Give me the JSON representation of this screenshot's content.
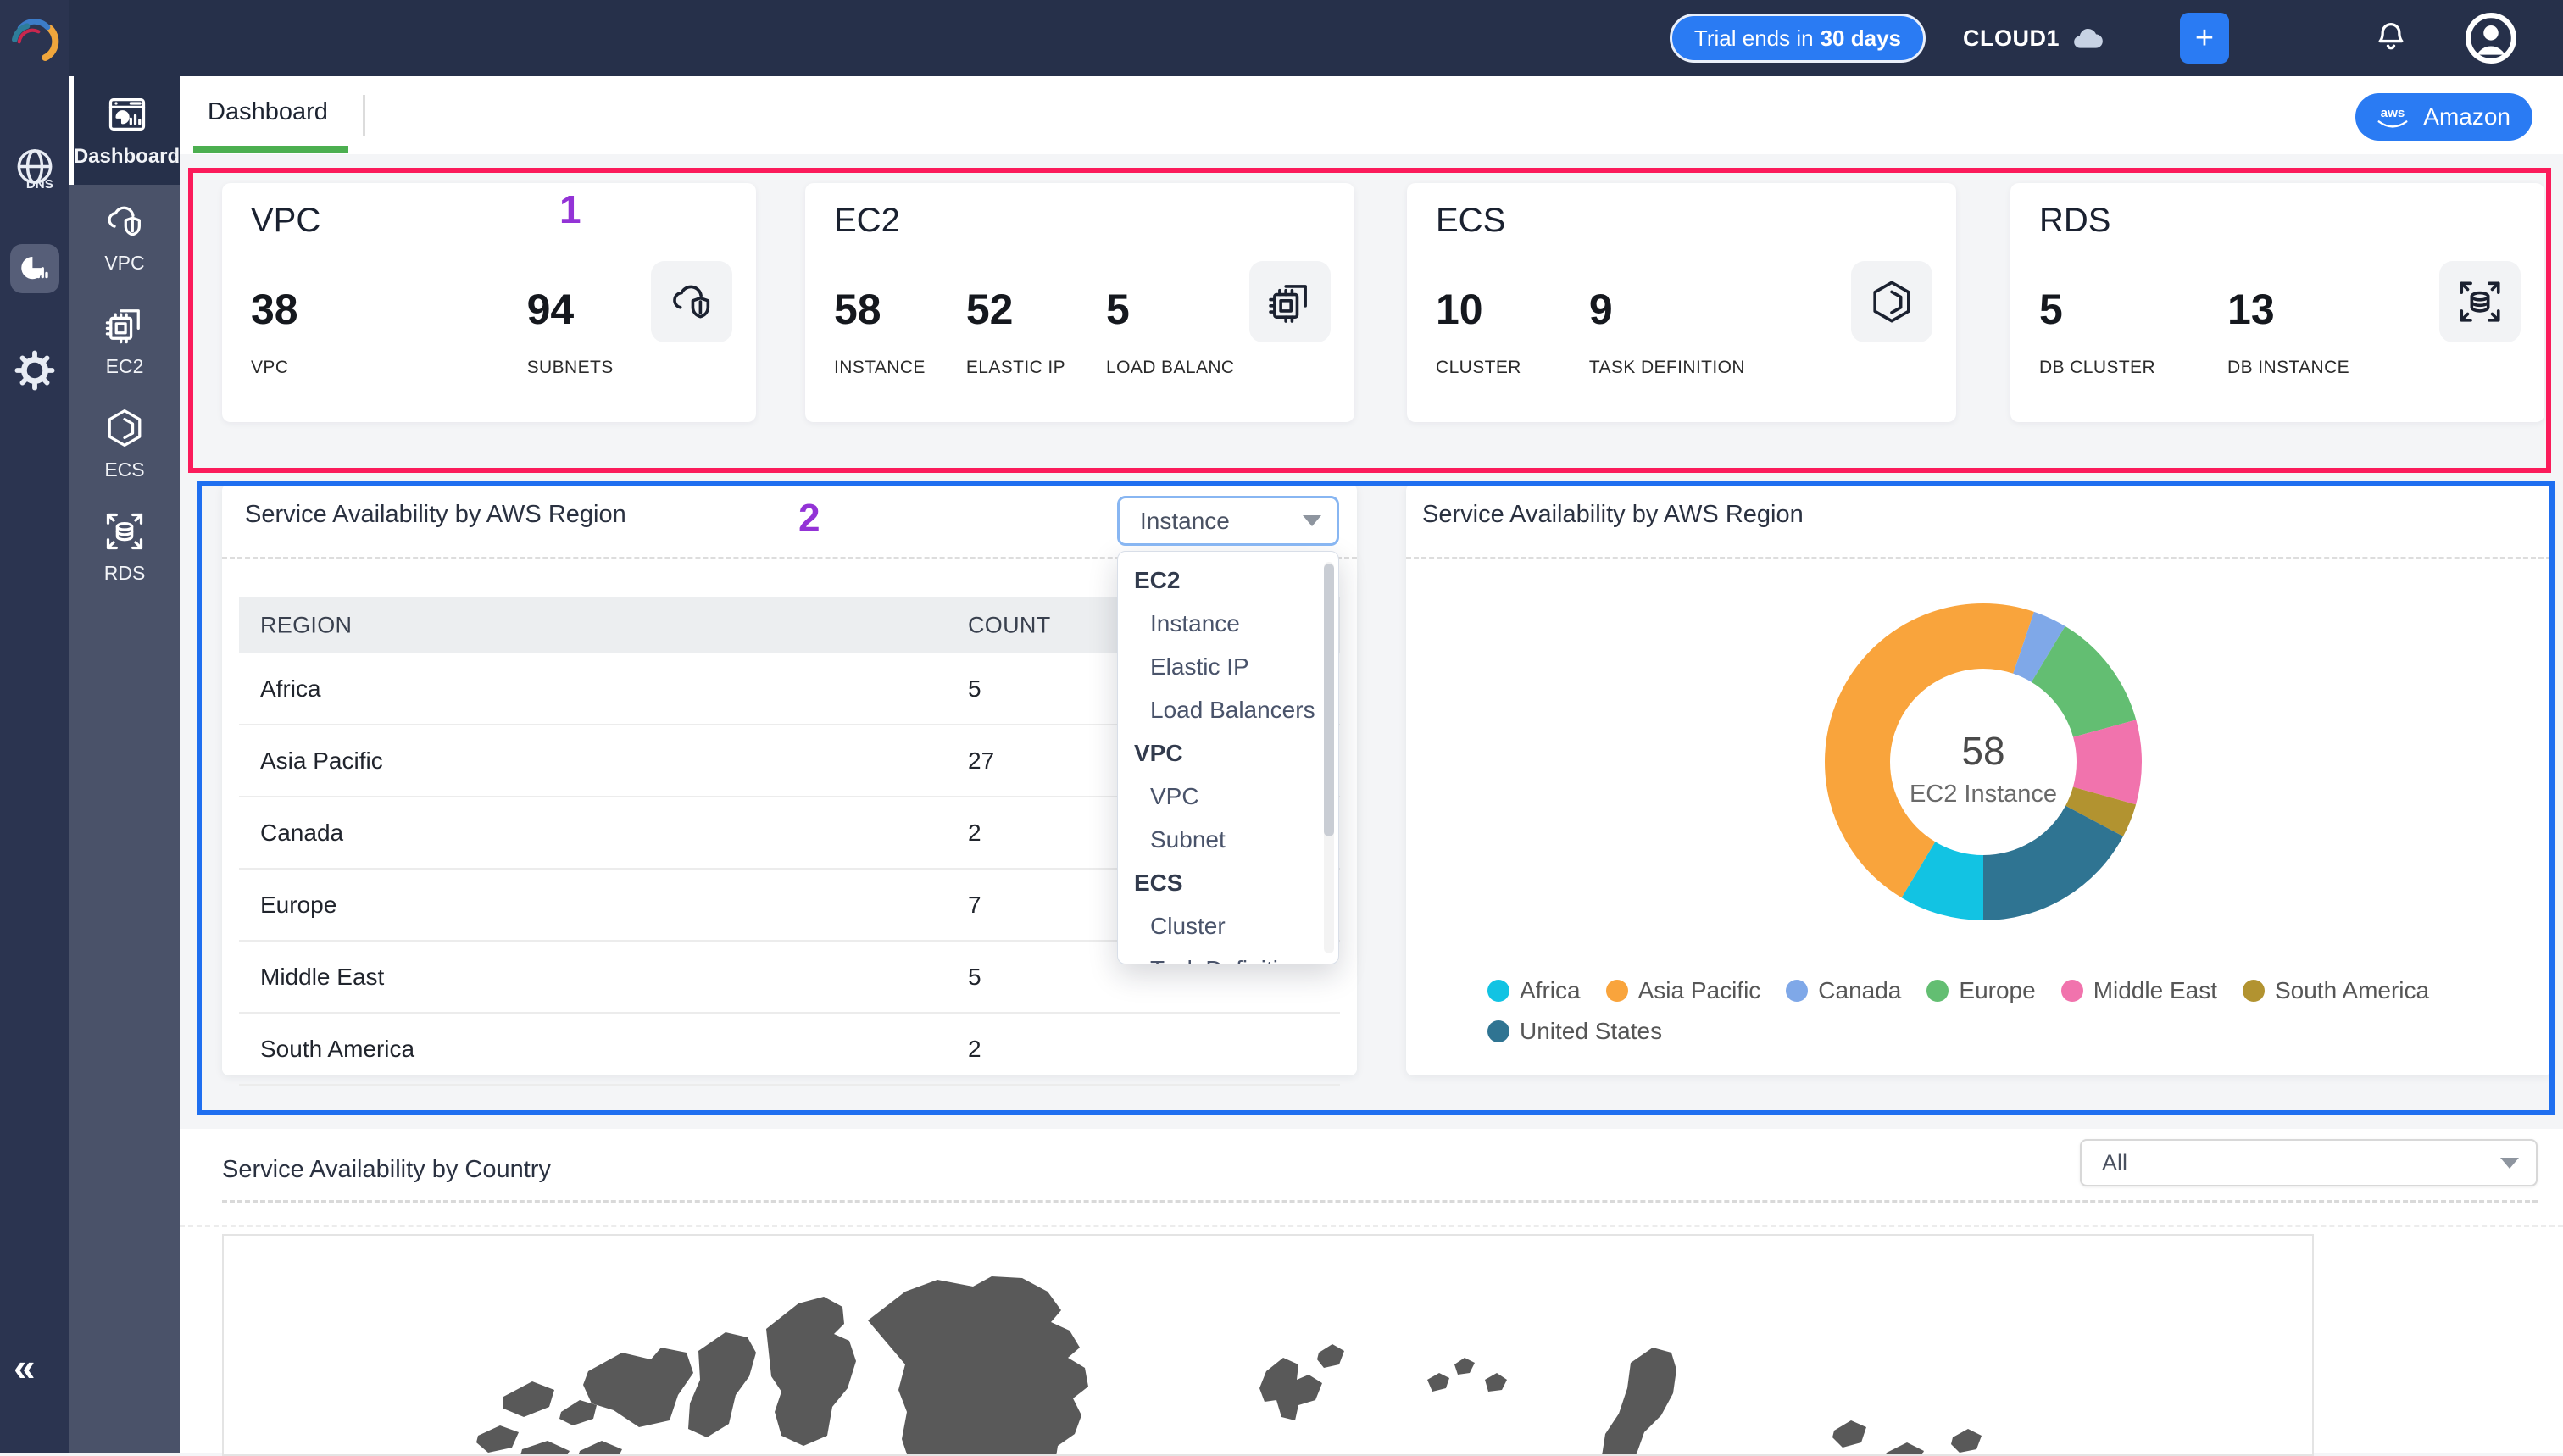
{
  "colors": {
    "accent_blue": "#2A7BF3",
    "topbar_bg": "#26304A",
    "rail_bg": "#2B3450",
    "sidebar_bg": "#4A5269",
    "tab_underline_green": "#4CAF50",
    "annotation_pink": "#FB1B5B",
    "annotation_blue": "#1F6FF0",
    "map_land": "#595959"
  },
  "topbar": {
    "trial_prefix": "Trial ends in",
    "trial_bold": "30 days",
    "org": "CLOUD1",
    "plus": "+"
  },
  "rail": {
    "dns_label": "DNS",
    "collapse": "«"
  },
  "sidebar": {
    "items": [
      {
        "label": "Dashboard",
        "icon": "dashboard-icon",
        "active": true
      },
      {
        "label": "VPC",
        "icon": "vpc-icon",
        "active": false
      },
      {
        "label": "EC2",
        "icon": "ec2-icon",
        "active": false
      },
      {
        "label": "ECS",
        "icon": "ecs-icon",
        "active": false
      },
      {
        "label": "RDS",
        "icon": "rds-icon",
        "active": false
      }
    ]
  },
  "tabbar": {
    "tab": "Dashboard",
    "provider_button": "Amazon",
    "provider_logo": "aws"
  },
  "stat_cards": [
    {
      "title": "VPC",
      "icon": "cloud-shield-icon",
      "gap": 270,
      "stats": [
        {
          "value": "38",
          "label": "VPC"
        },
        {
          "value": "94",
          "label": "SUBNETS"
        }
      ]
    },
    {
      "title": "EC2",
      "icon": "chip-icon",
      "gap": 48,
      "stats": [
        {
          "value": "58",
          "label": "INSTANCE"
        },
        {
          "value": "52",
          "label": "ELASTIC IP"
        },
        {
          "value": "5",
          "label": "LOAD BALANC"
        }
      ]
    },
    {
      "title": "ECS",
      "icon": "hexagon-icon",
      "gap": 80,
      "stats": [
        {
          "value": "10",
          "label": "CLUSTER"
        },
        {
          "value": "9",
          "label": "TASK DEFINITION"
        }
      ]
    },
    {
      "title": "RDS",
      "icon": "database-arrows-icon",
      "gap": 85,
      "stats": [
        {
          "value": "5",
          "label": "DB CLUSTER"
        },
        {
          "value": "13",
          "label": "DB INSTANCE"
        }
      ]
    }
  ],
  "region_section": {
    "table_title": "Service Availability by AWS Region",
    "chart_title": "Service Availability by AWS Region",
    "filter": {
      "value": "Instance",
      "groups": [
        {
          "label": "EC2",
          "items": [
            "Instance",
            "Elastic IP",
            "Load Balancers"
          ]
        },
        {
          "label": "VPC",
          "items": [
            "VPC",
            "Subnet"
          ]
        },
        {
          "label": "ECS",
          "items": [
            "Cluster",
            "Task Definition"
          ]
        }
      ]
    }
  },
  "chart_data": [
    {
      "type": "table",
      "title": "Service Availability by AWS Region",
      "columns": [
        "REGION",
        "COUNT"
      ],
      "rows": [
        [
          "Africa",
          5
        ],
        [
          "Asia Pacific",
          27
        ],
        [
          "Canada",
          2
        ],
        [
          "Europe",
          7
        ],
        [
          "Middle East",
          5
        ],
        [
          "South America",
          2
        ]
      ]
    },
    {
      "type": "pie",
      "variant": "donut",
      "title": "Service Availability by AWS Region",
      "center_value": "58",
      "center_label": "EC2 Instance",
      "start_angle_deg": 180,
      "direction": "clockwise",
      "legend_position": "bottom",
      "categories": [
        "Africa",
        "Asia Pacific",
        "Canada",
        "Europe",
        "Middle East",
        "South America",
        "United States"
      ],
      "values": [
        5,
        27,
        2,
        7,
        5,
        2,
        10
      ],
      "colors": [
        "#12C3E3",
        "#F9A43C",
        "#7FA8E8",
        "#63BE72",
        "#F173AD",
        "#B29330",
        "#2F7492"
      ],
      "total": 58
    }
  ],
  "country_section": {
    "title": "Service Availability by Country",
    "filter_value": "All"
  },
  "annotations": {
    "one": "1",
    "two": "2",
    "box1_color": "#FB1B5B",
    "box2_color": "#1F6FF0"
  }
}
